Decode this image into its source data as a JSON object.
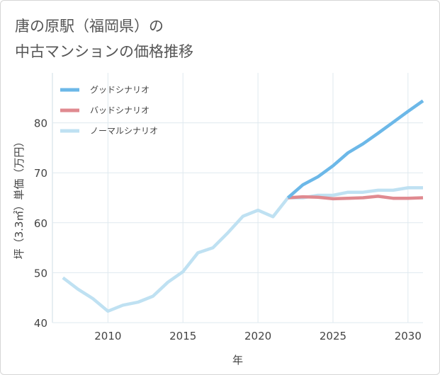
{
  "title": {
    "line1": "唐の原駅（福岡県）の",
    "line2": "中古マンションの価格推移"
  },
  "chart_data": {
    "type": "line",
    "xlabel": "年",
    "ylabel": "坪（3.3㎡）単価（万円）",
    "xlim": [
      2006.3,
      2031
    ],
    "ylim": [
      40,
      90
    ],
    "xticks": [
      2010,
      2015,
      2020,
      2025,
      2030
    ],
    "yticks": [
      40,
      50,
      60,
      70,
      80
    ],
    "grid": true,
    "legend_position": "top-left",
    "series": [
      {
        "name": "グッドシナリオ",
        "color": "#6cb8e8",
        "x": [
          2022,
          2023,
          2024,
          2025,
          2026,
          2027,
          2028,
          2029,
          2030,
          2031
        ],
        "y": [
          65,
          67.6,
          69.2,
          71.4,
          74,
          75.8,
          77.9,
          80.1,
          82.3,
          84.4
        ]
      },
      {
        "name": "バッドシナリオ",
        "color": "#e08a90",
        "x": [
          2022,
          2023,
          2024,
          2025,
          2026,
          2027,
          2028,
          2029,
          2030,
          2031
        ],
        "y": [
          65,
          65.2,
          65.1,
          64.8,
          64.9,
          65.0,
          65.3,
          64.9,
          64.9,
          65.0
        ]
      },
      {
        "name": "ノーマルシナリオ",
        "color": "#bfe1f2",
        "x": [
          2007,
          2008,
          2009,
          2010,
          2011,
          2012,
          2013,
          2014,
          2015,
          2016,
          2017,
          2018,
          2019,
          2020,
          2021,
          2022,
          2023,
          2024,
          2025,
          2026,
          2027,
          2028,
          2029,
          2030,
          2031
        ],
        "y": [
          49,
          46.7,
          44.8,
          42.3,
          43.5,
          44.1,
          45.3,
          48.1,
          50.2,
          54.0,
          55.0,
          58.0,
          61.3,
          62.5,
          61.2,
          65.0,
          65.0,
          65.5,
          65.5,
          66.1,
          66.1,
          66.5,
          66.5,
          67.0,
          67.0
        ]
      }
    ]
  }
}
